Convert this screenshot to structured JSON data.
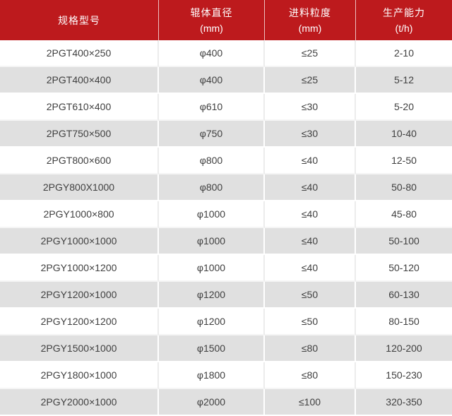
{
  "table": {
    "columns": [
      {
        "label": "规格型号",
        "sub": ""
      },
      {
        "label": "辊体直径",
        "sub": "(mm)"
      },
      {
        "label": "进料粒度",
        "sub": "(mm)"
      },
      {
        "label": "生产能力",
        "sub": "(t/h)"
      }
    ],
    "rows": [
      [
        "2PGT400×250",
        "φ400",
        "≤25",
        "2-10"
      ],
      [
        "2PGT400×400",
        "φ400",
        "≤25",
        "5-12"
      ],
      [
        "2PGT610×400",
        "φ610",
        "≤30",
        "5-20"
      ],
      [
        "2PGT750×500",
        "φ750",
        "≤30",
        "10-40"
      ],
      [
        "2PGT800×600",
        "φ800",
        "≤40",
        "12-50"
      ],
      [
        "2PGY800X1000",
        "φ800",
        "≤40",
        "50-80"
      ],
      [
        "2PGY1000×800",
        "φ1000",
        "≤40",
        "45-80"
      ],
      [
        "2PGY1000×1000",
        "φ1000",
        "≤40",
        "50-100"
      ],
      [
        "2PGY1000×1200",
        "φ1000",
        "≤40",
        "50-120"
      ],
      [
        "2PGY1200×1000",
        "φ1200",
        "≤50",
        "60-130"
      ],
      [
        "2PGY1200×1200",
        "φ1200",
        "≤50",
        "80-150"
      ],
      [
        "2PGY1500×1000",
        "φ1500",
        "≤80",
        "120-200"
      ],
      [
        "2PGY1800×1000",
        "φ1800",
        "≤80",
        "150-230"
      ],
      [
        "2PGY2000×1000",
        "φ2000",
        "≤100",
        "320-350"
      ]
    ],
    "colors": {
      "header_bg": "#bd1a1d",
      "header_text": "#ffffff",
      "row_bg": "#ffffff",
      "row_alt_bg": "#e0e0e0",
      "cell_text": "#404040",
      "header_divider": "#f3d4d5"
    }
  }
}
